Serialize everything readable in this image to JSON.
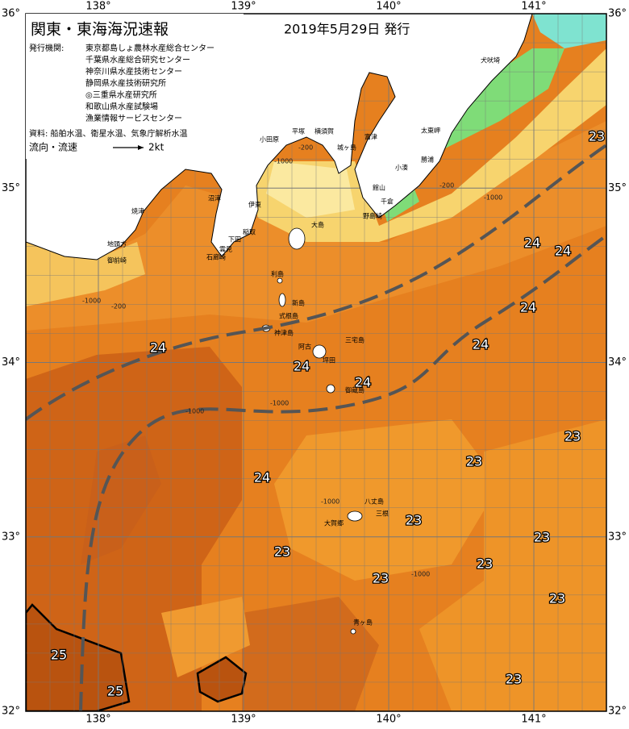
{
  "header": {
    "title": "関東・東海海況速報",
    "date": "2019年5月29日 発行"
  },
  "info": {
    "agencies_label": "発行機関:",
    "agencies": [
      "東京都島しょ農林水産総合センター",
      "千葉県水産総合研究センター",
      "神奈川県水産技術センター",
      "静岡県水産技術研究所",
      "◎三重県水産研究所",
      "和歌山県水産試験場",
      "漁業情報サービスセンター"
    ],
    "sources": "資料: 船舶水温、衛星水温、気象庁解析水温",
    "flow_label": "流向・流速",
    "flow_scale": "2kt"
  },
  "axes": {
    "longitudes": [
      "138°",
      "139°",
      "140°",
      "141°"
    ],
    "latitudes": [
      "36°",
      "35°",
      "34°",
      "33°",
      "32°"
    ]
  },
  "places": [
    "犬吠埼",
    "太東岬",
    "勝浦",
    "小湊",
    "館山",
    "千倉",
    "野島崎",
    "富津",
    "横須賀",
    "平塚",
    "小田原",
    "城ヶ島",
    "沼津",
    "伊東",
    "大島",
    "稲取",
    "下田",
    "雲見",
    "石廊崎",
    "焼津",
    "地頭方",
    "御前崎",
    "利島",
    "新島",
    "式根島",
    "神津島",
    "三宅島",
    "阿古",
    "坪田",
    "御蔵島",
    "八丈島",
    "三根",
    "大賀郷",
    "青ヶ島"
  ],
  "isotherm_labels": [
    "23",
    "24",
    "24",
    "24",
    "24",
    "24",
    "24",
    "24",
    "23",
    "23",
    "24",
    "23",
    "23",
    "23",
    "23",
    "23",
    "23",
    "25",
    "25",
    "23"
  ],
  "depth_labels": [
    "-200",
    "-1000",
    "-200",
    "-1000",
    "-1000",
    "-200",
    "-1000",
    "-1000",
    "-1000",
    "-1000"
  ]
}
